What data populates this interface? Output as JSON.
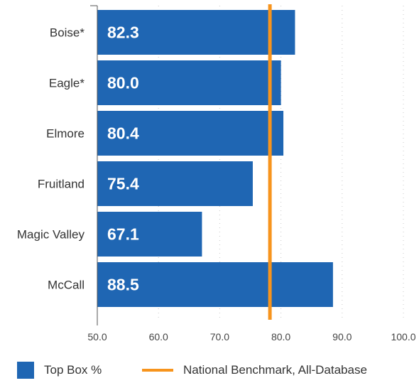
{
  "chart_data": {
    "type": "bar",
    "orientation": "horizontal",
    "categories": [
      "Boise*",
      "Eagle*",
      "Elmore",
      "Fruitland",
      "Magic Valley",
      "McCall"
    ],
    "series": [
      {
        "name": "Top Box %",
        "values": [
          82.3,
          80.0,
          80.4,
          75.4,
          67.1,
          88.5
        ],
        "value_labels": [
          "82.3",
          "80.0",
          "80.4",
          "75.4",
          "67.1",
          "88.5"
        ]
      }
    ],
    "reference_line": {
      "name": "National Benchmark, All-Database",
      "value": 78.2
    },
    "xlim": [
      50,
      100
    ],
    "x_ticks": [
      "50.0",
      "60.0",
      "70.0",
      "80.0",
      "90.0",
      "100.0"
    ],
    "grid": "vertical dotted",
    "legend_position": "bottom",
    "colors": {
      "bar": "#1f66b3",
      "benchmark": "#f7941d"
    }
  },
  "legend": {
    "items": [
      {
        "label": "Top Box %",
        "kind": "box"
      },
      {
        "label": "National Benchmark, All-Database",
        "kind": "line"
      }
    ]
  }
}
